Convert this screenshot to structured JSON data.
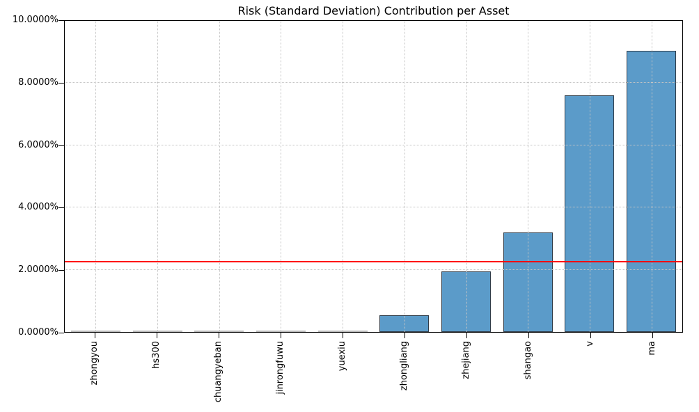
{
  "chart_data": {
    "type": "bar",
    "title": "Risk (Standard Deviation) Contribution per Asset",
    "categories": [
      "zhongyou",
      "hs300",
      "chuangyeban",
      "jinrongfuwu",
      "yuexiu",
      "zhongliang",
      "zhejiang",
      "shangao",
      "v",
      "ma"
    ],
    "values": [
      0.0,
      0.0,
      0.0,
      0.0,
      0.0,
      0.53,
      1.95,
      3.21,
      7.61,
      9.03
    ],
    "unit": "%",
    "xlabel": "",
    "ylabel": "",
    "ylim": [
      0,
      10
    ],
    "yticks": [
      {
        "value": 0,
        "label": "0.0000%"
      },
      {
        "value": 2,
        "label": "2.0000%"
      },
      {
        "value": 4,
        "label": "4.0000%"
      },
      {
        "value": 6,
        "label": "6.0000%"
      },
      {
        "value": 8,
        "label": "8.0000%"
      },
      {
        "value": 10,
        "label": "10.0000%"
      }
    ],
    "threshold_line": {
      "value": 2.25,
      "color": "#ff0000"
    },
    "grid": {
      "visible": true,
      "style": "dotted",
      "color": "#c4c4c4",
      "above_bars": true
    },
    "legend": "none",
    "bar_width_fraction": 0.8,
    "colors": {
      "bar_fill": "#5b9bc9",
      "bar_edge": "#2f3b47",
      "flat_bar_edge": "#b5b5b5",
      "axis": "#000000",
      "background": "#ffffff"
    }
  }
}
